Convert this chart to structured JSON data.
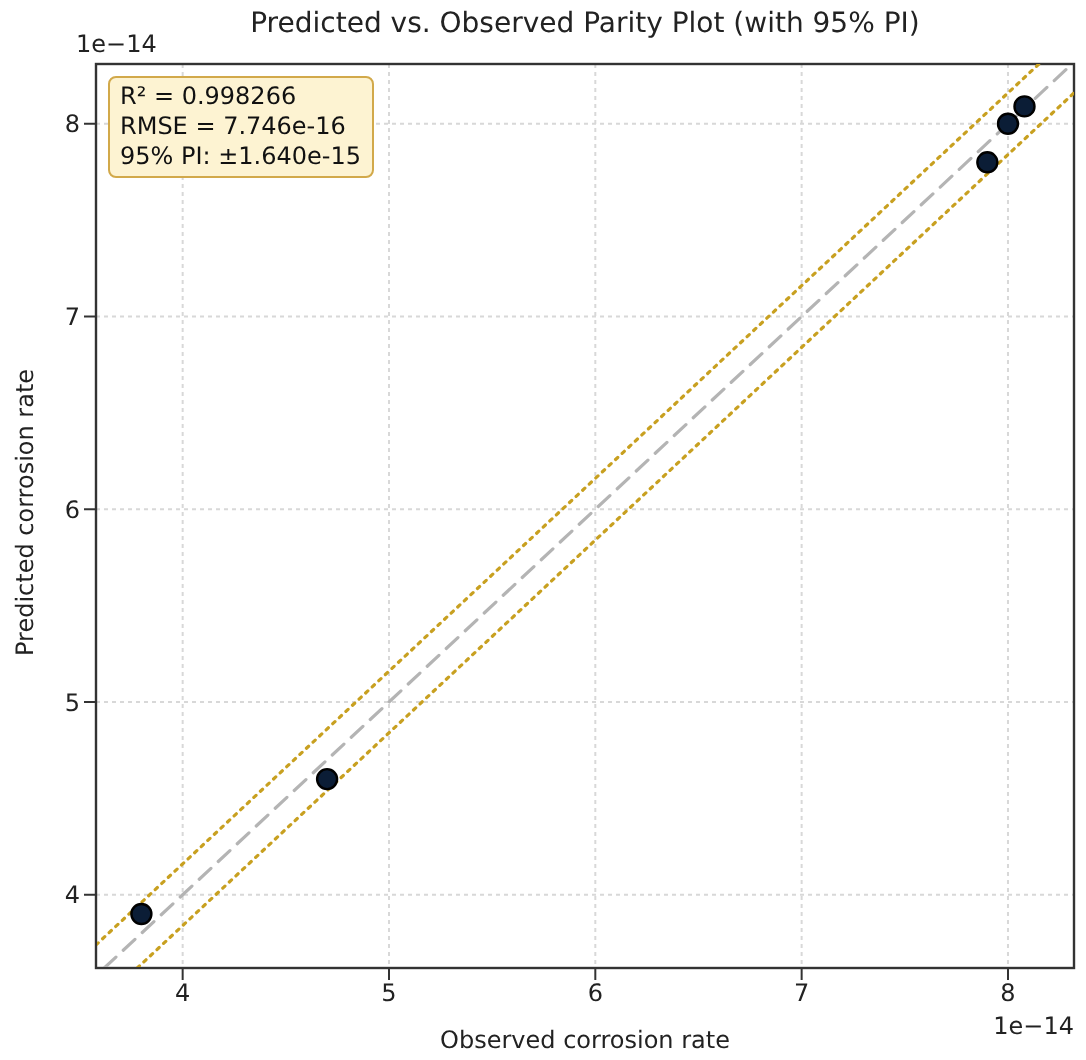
{
  "chart_data": {
    "type": "scatter",
    "title": "Predicted vs. Observed Parity Plot (with 95% PI)",
    "xlabel": "Observed corrosion rate",
    "ylabel": "Predicted corrosion rate",
    "annotations": [
      "R² = 0.998266",
      "RMSE = 7.746e-16",
      "95% PI: ±1.640e-15",
      "1e−14",
      "1e−14"
    ],
    "xlim": [
      3.58,
      8.32
    ],
    "ylim": [
      3.62,
      8.31
    ],
    "xticks": [
      4,
      5,
      6,
      7,
      8
    ],
    "yticks": [
      4,
      5,
      6,
      7,
      8
    ],
    "grid": true,
    "legend": false,
    "series": [
      {
        "type": "line",
        "color": "#b4b4b4",
        "line_style": "dashed",
        "marker": "none",
        "x": [
          3.62,
          8.31
        ],
        "values": [
          3.62,
          8.31
        ]
      },
      {
        "type": "line",
        "color": "#c8a020",
        "line_style": "dotted",
        "marker": "none",
        "x": [
          3.58,
          8.15
        ],
        "values": [
          3.74,
          8.31
        ]
      },
      {
        "type": "line",
        "color": "#c8a020",
        "line_style": "dotted",
        "marker": "none",
        "x": [
          3.78,
          8.32
        ],
        "values": [
          3.62,
          8.16
        ]
      },
      {
        "color": "#0b1d36",
        "marker": "circle",
        "x": [
          3.8,
          4.7,
          7.9,
          8.0,
          8.08
        ],
        "values": [
          3.9,
          4.6,
          7.8,
          8.0,
          8.09
        ]
      }
    ]
  }
}
